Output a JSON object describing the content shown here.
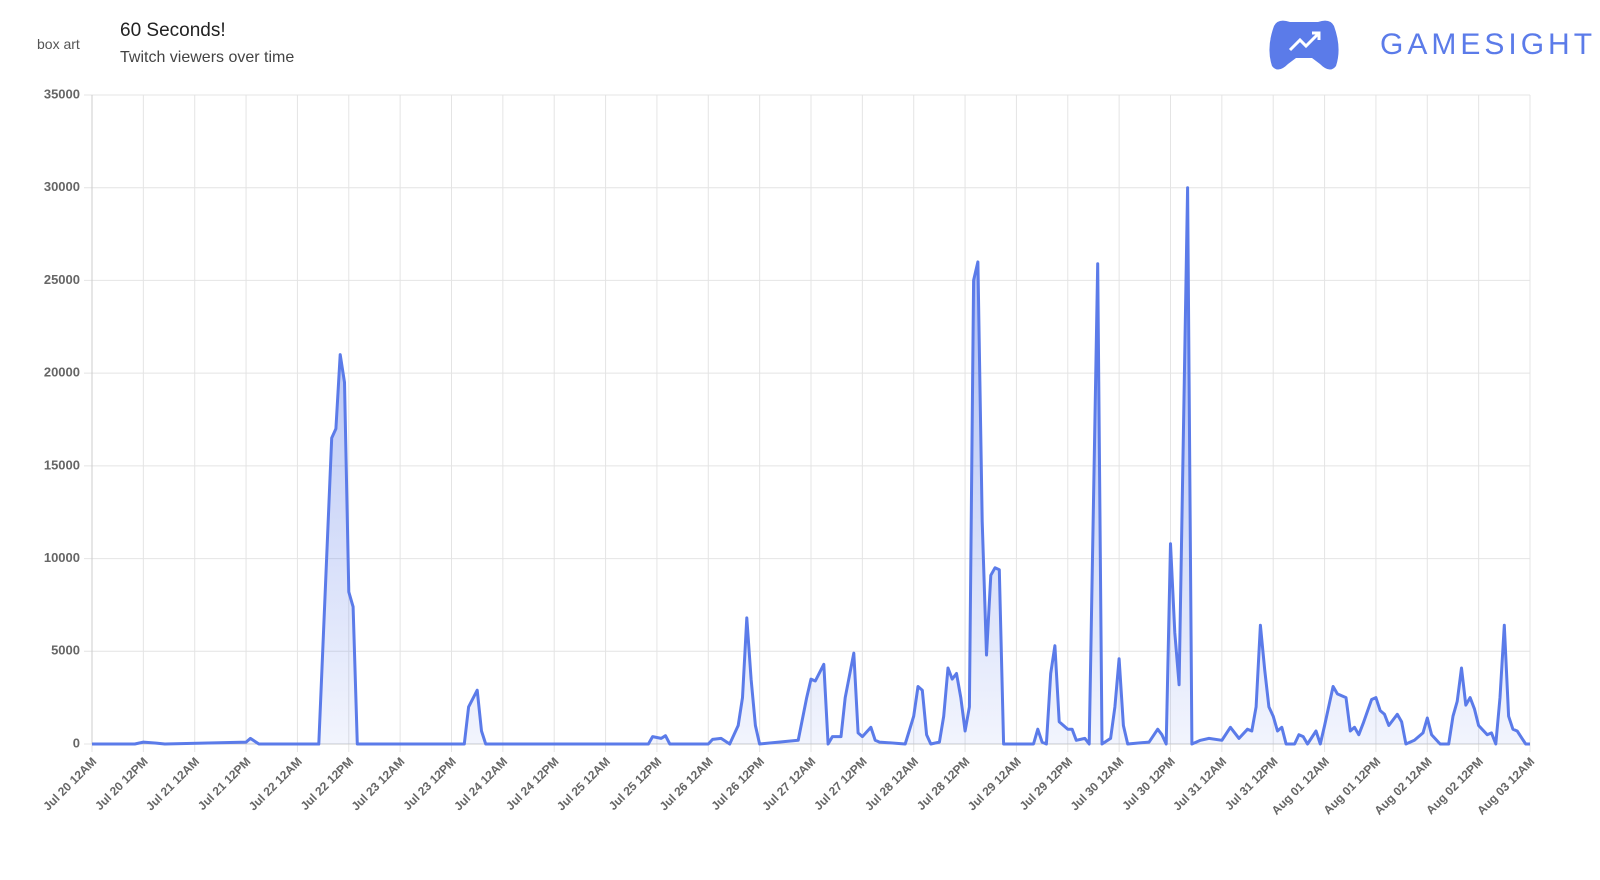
{
  "header": {
    "image_alt": "box art",
    "logo": "GAMESIGHT"
  },
  "chart_data": {
    "type": "line",
    "title": "60 Seconds!",
    "subtitle": "Twitch viewers over time",
    "color": "#5b7be9",
    "grid": true,
    "xlim": [
      "Jul 20 12AM",
      "Aug 03 12AM"
    ],
    "ylim": [
      0,
      35000
    ],
    "yticks": [
      0,
      5000,
      10000,
      15000,
      20000,
      25000,
      30000,
      35000
    ],
    "xticks": [
      "Jul 20 12AM",
      "Jul 20 12PM",
      "Jul 21 12AM",
      "Jul 21 12PM",
      "Jul 22 12AM",
      "Jul 22 12PM",
      "Jul 23 12AM",
      "Jul 23 12PM",
      "Jul 24 12AM",
      "Jul 24 12PM",
      "Jul 25 12AM",
      "Jul 25 12PM",
      "Jul 26 12AM",
      "Jul 26 12PM",
      "Jul 27 12AM",
      "Jul 27 12PM",
      "Jul 28 12AM",
      "Jul 28 12PM",
      "Jul 29 12AM",
      "Jul 29 12PM",
      "Jul 30 12AM",
      "Jul 30 12PM",
      "Jul 31 12AM",
      "Jul 31 12PM",
      "Aug 01 12AM",
      "Aug 01 12PM",
      "Aug 02 12AM",
      "Aug 02 12PM",
      "Aug 03 12AM"
    ],
    "x": [
      "Jul 20 12AM",
      "Jul 20 10AM",
      "Jul 20 12PM",
      "Jul 20 3PM",
      "Jul 20 5PM",
      "Jul 21 12PM",
      "Jul 21 1PM",
      "Jul 21 3PM",
      "Jul 22 5AM",
      "Jul 22 7AM",
      "Jul 22 8AM",
      "Jul 22 9AM",
      "Jul 22 10AM",
      "Jul 22 11AM",
      "Jul 22 12PM",
      "Jul 22 1PM",
      "Jul 22 2PM",
      "Jul 23 3PM",
      "Jul 23 4PM",
      "Jul 23 6PM",
      "Jul 23 7PM",
      "Jul 23 8PM",
      "Jul 25 10AM",
      "Jul 25 11AM",
      "Jul 25 1PM",
      "Jul 25 2PM",
      "Jul 25 3PM",
      "Jul 26 12AM",
      "Jul 26 1AM",
      "Jul 26 3AM",
      "Jul 26 5AM",
      "Jul 26 7AM",
      "Jul 26 8AM",
      "Jul 26 9AM",
      "Jul 26 10AM",
      "Jul 26 11AM",
      "Jul 26 12PM",
      "Jul 26 9PM",
      "Jul 26 11PM",
      "Jul 27 12AM",
      "Jul 27 1AM",
      "Jul 27 3AM",
      "Jul 27 4AM",
      "Jul 27 5AM",
      "Jul 27 7AM",
      "Jul 27 8AM",
      "Jul 27 10AM",
      "Jul 27 11AM",
      "Jul 27 12PM",
      "Jul 27 2PM",
      "Jul 27 3PM",
      "Jul 27 4PM",
      "Jul 27 10PM",
      "Jul 28 12AM",
      "Jul 28 1AM",
      "Jul 28 2AM",
      "Jul 28 3AM",
      "Jul 28 4AM",
      "Jul 28 6AM",
      "Jul 28 7AM",
      "Jul 28 8AM",
      "Jul 28 9AM",
      "Jul 28 10AM",
      "Jul 28 11AM",
      "Jul 28 12PM",
      "Jul 28 1PM",
      "Jul 28 2PM",
      "Jul 28 3PM",
      "Jul 28 4PM",
      "Jul 28 5PM",
      "Jul 28 6PM",
      "Jul 28 7PM",
      "Jul 28 8PM",
      "Jul 28 9PM",
      "Jul 29 4AM",
      "Jul 29 5AM",
      "Jul 29 6AM",
      "Jul 29 7AM",
      "Jul 29 8AM",
      "Jul 29 9AM",
      "Jul 29 10AM",
      "Jul 29 12PM",
      "Jul 29 1PM",
      "Jul 29 2PM",
      "Jul 29 4PM",
      "Jul 29 5PM",
      "Jul 29 7PM",
      "Jul 29 8PM",
      "Jul 29 10PM",
      "Jul 29 11PM",
      "Jul 30 12AM",
      "Jul 30 1AM",
      "Jul 30 2AM",
      "Jul 30 7AM",
      "Jul 30 9AM",
      "Jul 30 10AM",
      "Jul 30 11AM",
      "Jul 30 12PM",
      "Jul 30 1PM",
      "Jul 30 2PM",
      "Jul 30 4PM",
      "Jul 30 5PM",
      "Jul 30 7PM",
      "Jul 30 9PM",
      "Jul 31 12AM",
      "Jul 31 2AM",
      "Jul 31 4AM",
      "Jul 31 6AM",
      "Jul 31 7AM",
      "Jul 31 8AM",
      "Jul 31 9AM",
      "Jul 31 10AM",
      "Jul 31 11AM",
      "Jul 31 12PM",
      "Jul 31 1PM",
      "Jul 31 2PM",
      "Jul 31 3PM",
      "Jul 31 5PM",
      "Jul 31 6PM",
      "Jul 31 7PM",
      "Jul 31 8PM",
      "Jul 31 10PM",
      "Jul 31 11PM",
      "Aug 01 12AM",
      "Aug 01 2AM",
      "Aug 01 3AM",
      "Aug 01 5AM",
      "Aug 01 6AM",
      "Aug 01 7AM",
      "Aug 01 8AM",
      "Aug 01 9AM",
      "Aug 01 11AM",
      "Aug 01 12PM",
      "Aug 01 1PM",
      "Aug 01 2PM",
      "Aug 01 3PM",
      "Aug 01 5PM",
      "Aug 01 6PM",
      "Aug 01 7PM",
      "Aug 01 9PM",
      "Aug 01 11PM",
      "Aug 02 12AM",
      "Aug 02 1AM",
      "Aug 02 3AM",
      "Aug 02 5AM",
      "Aug 02 6AM",
      "Aug 02 7AM",
      "Aug 02 8AM",
      "Aug 02 9AM",
      "Aug 02 10AM",
      "Aug 02 11AM",
      "Aug 02 12PM",
      "Aug 02 2PM",
      "Aug 02 3PM",
      "Aug 02 4PM",
      "Aug 02 5PM",
      "Aug 02 6PM",
      "Aug 02 7PM",
      "Aug 02 8PM",
      "Aug 02 9PM",
      "Aug 02 11PM",
      "Aug 03 12AM"
    ],
    "values": [
      0,
      0,
      100,
      50,
      0,
      100,
      300,
      0,
      0,
      11000,
      16500,
      17000,
      21000,
      19500,
      8200,
      7400,
      0,
      0,
      2000,
      2900,
      700,
      0,
      0,
      400,
      300,
      450,
      0,
      0,
      250,
      300,
      0,
      1000,
      2500,
      6800,
      3500,
      1000,
      0,
      200,
      2500,
      3500,
      3400,
      4300,
      0,
      400,
      400,
      2500,
      4900,
      600,
      400,
      900,
      200,
      100,
      0,
      1500,
      3100,
      2900,
      500,
      0,
      100,
      1500,
      4100,
      3500,
      3800,
      2500,
      700,
      2000,
      25000,
      26000,
      12000,
      4800,
      9100,
      9500,
      9400,
      0,
      0,
      800,
      100,
      0,
      3800,
      5300,
      1200,
      800,
      800,
      200,
      300,
      0,
      25900,
      0,
      300,
      2000,
      4600,
      1000,
      0,
      100,
      800,
      500,
      0,
      10800,
      6000,
      3200,
      30000,
      0,
      200,
      300,
      200,
      900,
      300,
      800,
      700,
      2000,
      6400,
      4000,
      2000,
      1500,
      700,
      900,
      0,
      0,
      500,
      400,
      0,
      700,
      0,
      1000,
      3100,
      2700,
      2500,
      700,
      900,
      500,
      1100,
      2400,
      2500,
      1800,
      1600,
      1000,
      1600,
      1200,
      0,
      200,
      600,
      1400,
      500,
      0,
      0,
      1500,
      2300,
      4100,
      2100,
      2500,
      1900,
      1000,
      500,
      600,
      0,
      2500,
      6400,
      1500,
      800,
      700,
      0,
      0
    ]
  }
}
